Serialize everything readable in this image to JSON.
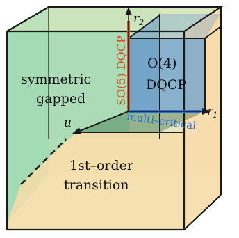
{
  "colors": {
    "green": "#9fd9b4",
    "orange": "#f6dca8",
    "blue": "#6a9fd1",
    "red": "#d9532a",
    "accent_blue": "#2f6fd1",
    "edge": "#1a1a1a"
  },
  "labels": {
    "symmetric_line1": "symmetric",
    "symmetric_line2": "gapped",
    "first_order_line1": "1st–order",
    "first_order_line2": "transition",
    "o4": "O(4)",
    "dqcp": "DQCP",
    "so5": "SO(5) DQCP",
    "multicritical": "multi–critical"
  },
  "axes": {
    "r2": "r",
    "r2_sub": "2",
    "r1": "r",
    "r1_sub": "1",
    "u": "u"
  }
}
